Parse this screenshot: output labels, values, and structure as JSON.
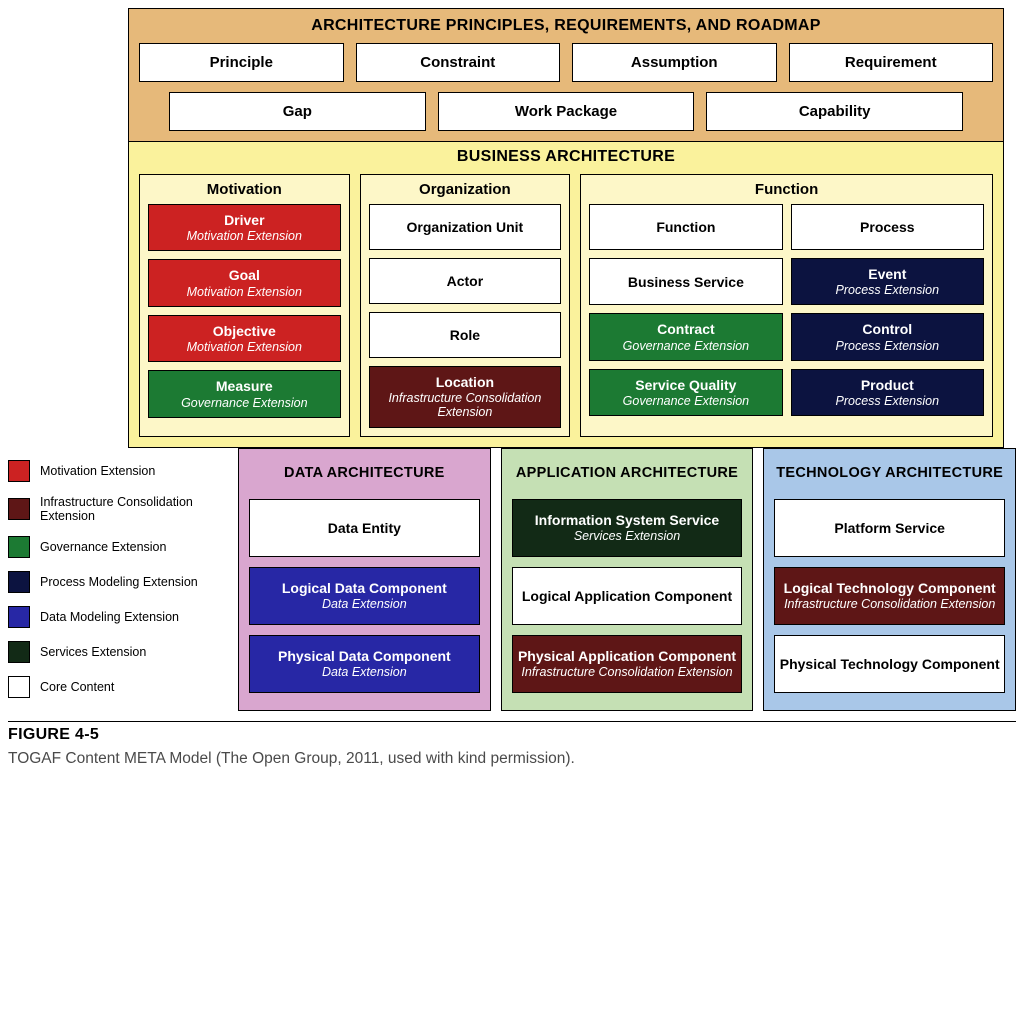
{
  "colors": {
    "principles_bg": "#e6b97a",
    "business_bg": "#faf29c",
    "business_inner_bg": "#fdf7c8",
    "data_bg": "#d9a6cf",
    "app_bg": "#c5e0b4",
    "tech_bg": "#a9c7e8",
    "motivation_ext": "#cc2222",
    "infra_ext": "#5e1616",
    "governance_ext": "#1c7a33",
    "process_ext": "#0c1340",
    "data_ext": "#2727a5",
    "services_ext": "#122a16",
    "core": "#ffffff",
    "border": "#000000"
  },
  "typography": {
    "base_font": "Arial, Helvetica, sans-serif",
    "section_title_size_pt": 12,
    "item_title_size_pt": 11,
    "subtitle_style": "italic"
  },
  "principles": {
    "title": "ARCHITECTURE PRINCIPLES, REQUIREMENTS, AND ROADMAP",
    "row1": [
      "Principle",
      "Constraint",
      "Assumption",
      "Requirement"
    ],
    "row2": [
      "Gap",
      "Work Package",
      "Capability"
    ]
  },
  "business": {
    "title": "BUSINESS ARCHITECTURE",
    "columns": {
      "motivation": {
        "title": "Motivation",
        "items": [
          {
            "label": "Driver",
            "sub": "Motivation Extension",
            "style": "red"
          },
          {
            "label": "Goal",
            "sub": "Motivation Extension",
            "style": "red"
          },
          {
            "label": "Objective",
            "sub": "Motivation Extension",
            "style": "red"
          },
          {
            "label": "Measure",
            "sub": "Governance Extension",
            "style": "green"
          }
        ]
      },
      "organization": {
        "title": "Organization",
        "items": [
          {
            "label": "Organization Unit",
            "sub": "",
            "style": "white"
          },
          {
            "label": "Actor",
            "sub": "",
            "style": "white"
          },
          {
            "label": "Role",
            "sub": "",
            "style": "white"
          },
          {
            "label": "Location",
            "sub": "Infrastructure Consolidation Extension",
            "style": "maroon"
          }
        ]
      },
      "function": {
        "title": "Function",
        "left": [
          {
            "label": "Function",
            "sub": "",
            "style": "white"
          },
          {
            "label": "Business Service",
            "sub": "",
            "style": "white"
          },
          {
            "label": "Contract",
            "sub": "Governance Extension",
            "style": "green"
          },
          {
            "label": "Service Quality",
            "sub": "Governance Extension",
            "style": "green"
          }
        ],
        "right": [
          {
            "label": "Process",
            "sub": "",
            "style": "white"
          },
          {
            "label": "Event",
            "sub": "Process Extension",
            "style": "navy"
          },
          {
            "label": "Control",
            "sub": "Process Extension",
            "style": "navy"
          },
          {
            "label": "Product",
            "sub": "Process Extension",
            "style": "navy"
          }
        ]
      }
    }
  },
  "lower": {
    "data": {
      "title": "DATA ARCHITECTURE",
      "items": [
        {
          "label": "Data Entity",
          "sub": "",
          "style": "white"
        },
        {
          "label": "Logical Data Component",
          "sub": "Data Extension",
          "style": "blue"
        },
        {
          "label": "Physical Data Component",
          "sub": "Data Extension",
          "style": "blue"
        }
      ]
    },
    "app": {
      "title": "APPLICATION ARCHITECTURE",
      "items": [
        {
          "label": "Information System Service",
          "sub": "Services Extension",
          "style": "darkgreen"
        },
        {
          "label": "Logical Application Component",
          "sub": "",
          "style": "white"
        },
        {
          "label": "Physical Application Component",
          "sub": "Infrastructure Consolidation Extension",
          "style": "maroon"
        }
      ]
    },
    "tech": {
      "title": "TECHNOLOGY ARCHITECTURE",
      "items": [
        {
          "label": "Platform Service",
          "sub": "",
          "style": "white"
        },
        {
          "label": "Logical Technology Component",
          "sub": "Infrastructure Consolidation Extension",
          "style": "maroon"
        },
        {
          "label": "Physical Technology Component",
          "sub": "",
          "style": "white"
        }
      ]
    }
  },
  "legend": [
    {
      "label": "Motivation Extension",
      "style": "red"
    },
    {
      "label": "Infrastructure Consolidation Extension",
      "style": "maroon"
    },
    {
      "label": "Governance Extension",
      "style": "green"
    },
    {
      "label": "Process Modeling Extension",
      "style": "navy"
    },
    {
      "label": "Data Modeling Extension",
      "style": "blue"
    },
    {
      "label": "Services Extension",
      "style": "darkgreen"
    },
    {
      "label": "Core Content",
      "style": "white"
    }
  ],
  "figure": {
    "label": "FIGURE 4-5",
    "caption": "TOGAF Content META Model (The Open Group, 2011, used with kind permission)."
  }
}
